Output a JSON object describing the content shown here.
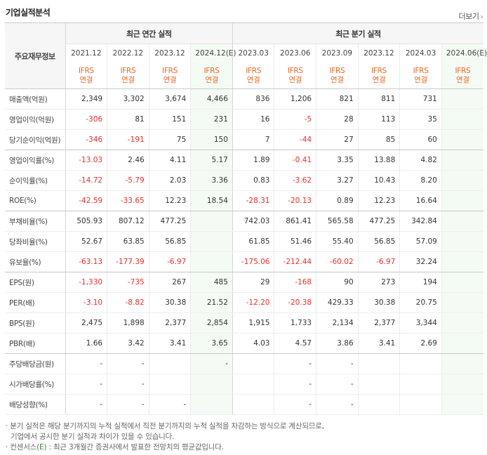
{
  "section_title": "기업실적분석",
  "more_label": "더보기",
  "more_arrow": "›",
  "header": {
    "label": "주요재무정보",
    "annual_group": "최근 연간 실적",
    "quarter_group": "최근 분기 실적",
    "periods": [
      "2021.12",
      "2022.12",
      "2023.12",
      "2024.12(E)",
      "2023.03",
      "2023.06",
      "2023.09",
      "2023.12",
      "2024.03",
      "2024.06(E)"
    ],
    "basis_top": "IFRS",
    "basis_bottom": "연결"
  },
  "rows": [
    {
      "label": "매출액(억원)",
      "values": [
        "2,349",
        "3,302",
        "3,674",
        "4,466",
        "836",
        "1,206",
        "821",
        "811",
        "731",
        ""
      ]
    },
    {
      "label": "영업이익(억원)",
      "values": [
        "-306",
        "81",
        "151",
        "231",
        "16",
        "-5",
        "28",
        "113",
        "35",
        ""
      ]
    },
    {
      "label": "당기순이익(억원)",
      "values": [
        "-346",
        "-191",
        "75",
        "150",
        "7",
        "-44",
        "27",
        "85",
        "60",
        ""
      ]
    },
    {
      "label": "영업이익률(%)",
      "values": [
        "-13.03",
        "2.46",
        "4.11",
        "5.17",
        "1.89",
        "-0.41",
        "3.35",
        "13.88",
        "4.82",
        ""
      ]
    },
    {
      "label": "순이익률(%)",
      "values": [
        "-14.72",
        "-5.79",
        "2.03",
        "3.36",
        "0.83",
        "-3.62",
        "3.27",
        "10.43",
        "8.20",
        ""
      ]
    },
    {
      "label": "ROE(%)",
      "values": [
        "-42.59",
        "-33.65",
        "12.23",
        "18.54",
        "-28.31",
        "-20.13",
        "0.89",
        "12.23",
        "16.64",
        ""
      ]
    },
    {
      "label": "부채비율(%)",
      "values": [
        "505.93",
        "807.12",
        "477.25",
        "",
        "742.03",
        "861.41",
        "565.58",
        "477.25",
        "342.84",
        ""
      ]
    },
    {
      "label": "당좌비율(%)",
      "values": [
        "52.67",
        "63.85",
        "56.85",
        "",
        "61.85",
        "51.46",
        "55.40",
        "56.85",
        "57.09",
        ""
      ]
    },
    {
      "label": "유보율(%)",
      "values": [
        "-63.13",
        "-177.39",
        "-6.97",
        "",
        "-175.06",
        "-212.44",
        "-60.02",
        "-6.97",
        "32.24",
        ""
      ]
    },
    {
      "label": "EPS(원)",
      "values": [
        "-1,330",
        "-735",
        "267",
        "485",
        "29",
        "-168",
        "90",
        "273",
        "194",
        ""
      ]
    },
    {
      "label": "PER(배)",
      "values": [
        "-3.10",
        "-8.82",
        "30.38",
        "21.52",
        "-12.20",
        "-20.38",
        "429.33",
        "30.38",
        "20.75",
        ""
      ]
    },
    {
      "label": "BPS(원)",
      "values": [
        "2,475",
        "1,898",
        "2,377",
        "2,854",
        "1,915",
        "1,733",
        "2,134",
        "2,377",
        "3,344",
        ""
      ]
    },
    {
      "label": "PBR(배)",
      "values": [
        "1.66",
        "3.42",
        "3.41",
        "3.65",
        "4.03",
        "4.57",
        "3.86",
        "3.41",
        "2.69",
        ""
      ]
    },
    {
      "label": "주당배당금(원)",
      "values": [
        "-",
        "-",
        "",
        "-",
        "",
        "-",
        "-",
        "",
        "",
        ""
      ]
    },
    {
      "label": "시가배당률(%)",
      "values": [
        "-",
        "-",
        "",
        "",
        "",
        "-",
        "-",
        "",
        "",
        ""
      ]
    },
    {
      "label": "배당성향(%)",
      "values": [
        "-",
        "-",
        "-",
        "",
        "",
        "-",
        "-",
        "",
        "",
        ""
      ]
    }
  ],
  "notes": {
    "line1": "· 분기 실적은 해당 분기까지의 누적 실적에서 직전 분기까지의 누적 실적을 차감하는 방식으로 계산되므로,",
    "line2": "기업에서 공시한 분기 실적과 차이가 있을 수 있습니다.",
    "line3_prefix": "· 컨센서스",
    "line3_e": "(E)",
    "line3_suffix": " : 최근 3개월간 증권사에서 발표한 전망치의 평균값입니다."
  },
  "colors": {
    "negative": "#e8302b",
    "basis": "#e8682a",
    "estimate_bg": "#f4fbf4"
  }
}
